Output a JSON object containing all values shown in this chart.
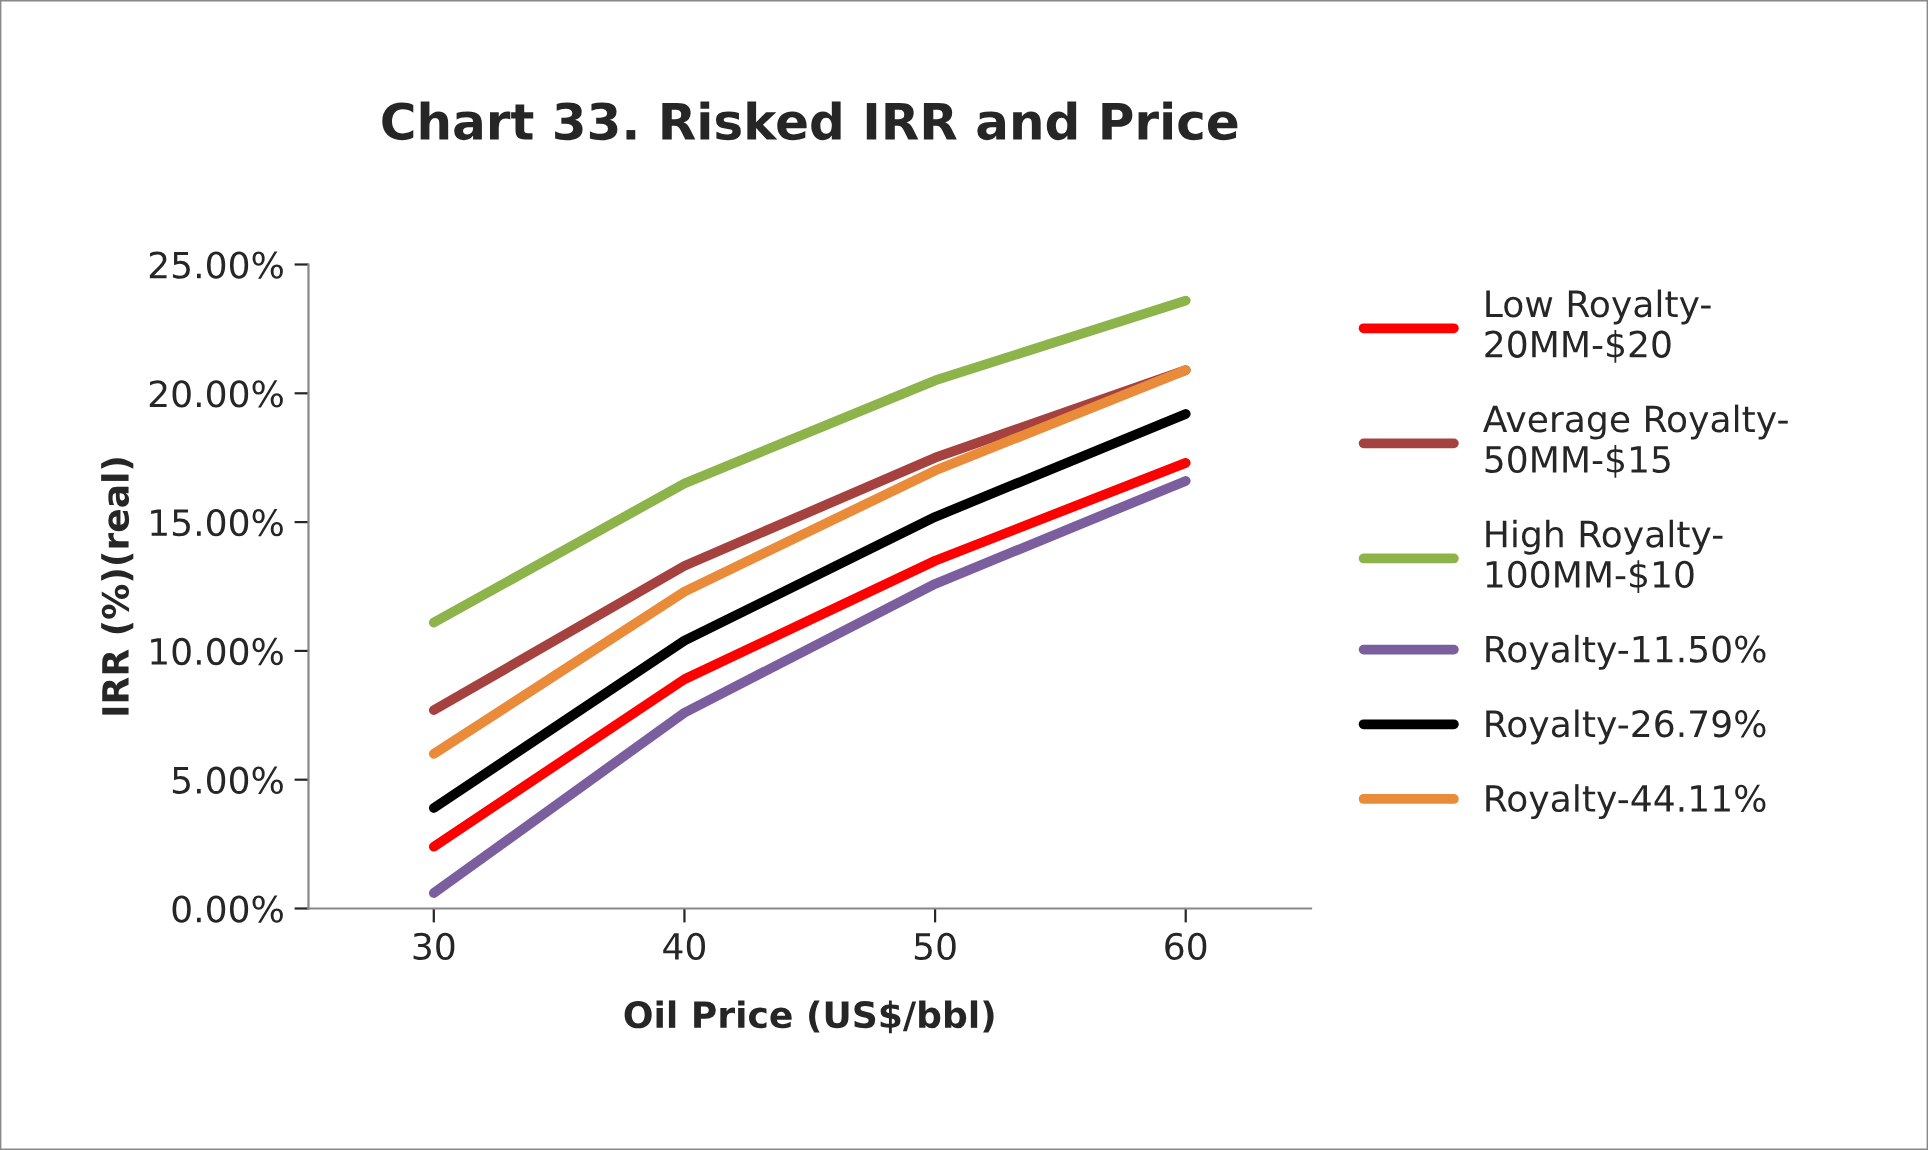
{
  "chart_data": {
    "type": "line",
    "title": "Chart 33. Risked IRR and Price",
    "xlabel": "Oil Price (US$/bbl)",
    "ylabel": "IRR (%)(real)",
    "categories": [
      "30",
      "40",
      "50",
      "60"
    ],
    "series": [
      {
        "name": "Low Royalty-20MM-$20",
        "color": "#ff0000",
        "values": [
          2.4,
          8.9,
          13.5,
          17.3
        ]
      },
      {
        "name": "Average Royalty-50MM-$15",
        "color": "#a5423f",
        "values": [
          7.7,
          13.3,
          17.5,
          20.9
        ]
      },
      {
        "name": "High Royalty-100MM-$10",
        "color": "#8db34b",
        "values": [
          11.1,
          16.5,
          20.5,
          23.6
        ]
      },
      {
        "name": "Royalty-11.50%",
        "color": "#7a5e9e",
        "values": [
          0.6,
          7.6,
          12.6,
          16.6
        ]
      },
      {
        "name": "Royalty-26.79%",
        "color": "#000000",
        "values": [
          3.9,
          10.4,
          15.2,
          19.2
        ]
      },
      {
        "name": "Royalty-44.11%",
        "color": "#e98b39",
        "values": [
          6.0,
          12.3,
          17.0,
          20.9
        ]
      }
    ],
    "ylim": [
      0,
      25
    ],
    "yticks": [
      {
        "value": 0,
        "label": "0.00%"
      },
      {
        "value": 5,
        "label": "5.00%"
      },
      {
        "value": 10,
        "label": "10.00%"
      },
      {
        "value": 15,
        "label": "15.00%"
      },
      {
        "value": 20,
        "label": "20.00%"
      },
      {
        "value": 25,
        "label": "25.00%"
      }
    ],
    "grid": false,
    "legend": "right",
    "marker": "none",
    "line_style": "solid"
  }
}
